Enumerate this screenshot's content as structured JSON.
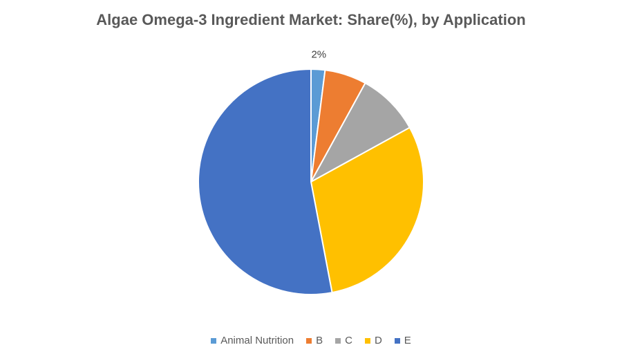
{
  "chart_data": {
    "type": "pie",
    "title": "Algae Omega-3 Ingredient Market: Share(%), by Application",
    "categories": [
      "Animal Nutrition",
      "B",
      "C",
      "D",
      "E"
    ],
    "values": [
      2,
      6,
      9,
      30,
      53
    ],
    "colors": [
      "#5B9BD5",
      "#ED7D31",
      "#A5A5A5",
      "#FFC000",
      "#4472C4"
    ],
    "data_labels": [
      "2%",
      "",
      "",
      "",
      ""
    ],
    "start_angle_deg": 0,
    "direction": "clockwise",
    "legend_position": "bottom"
  }
}
